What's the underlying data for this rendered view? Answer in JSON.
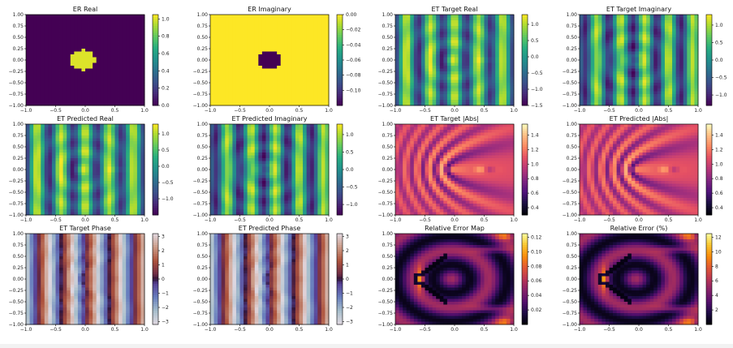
{
  "figure": {
    "colors": {
      "background": "#ffffff",
      "axis": "#000000",
      "text": "#111111"
    },
    "layout": "3 rows x 4 columns of heatmap panels, each with a colorbar on the right"
  },
  "chart_data": [
    {
      "type": "heatmap",
      "title": "ER Real",
      "field": "er_real",
      "cmap": "viridis",
      "xlim": [
        -1,
        1
      ],
      "ylim": [
        -1,
        1
      ],
      "xticks": [
        "−1.0",
        "−0.5",
        "0.0",
        "0.5",
        "1.0"
      ],
      "yticks": [
        "1.00",
        "0.75",
        "0.50",
        "0.25",
        "0.00",
        "−0.25",
        "−0.50",
        "−0.75",
        "−1.00"
      ],
      "clim": [
        0,
        1.05
      ],
      "cbar_ticks": [
        {
          "v": 1.0,
          "label": "1.0"
        },
        {
          "v": 0.8,
          "label": "0.8"
        },
        {
          "v": 0.6,
          "label": "0.6"
        },
        {
          "v": 0.4,
          "label": "0.4"
        },
        {
          "v": 0.2,
          "label": "0.2"
        },
        {
          "v": 0.0,
          "label": "0.0"
        }
      ],
      "description_values": {
        "disk_center": [
          -0.05,
          0.0
        ],
        "disk_radius": 0.22,
        "inside": 1.0,
        "outside": 0.0
      }
    },
    {
      "type": "heatmap",
      "title": "ER Imaginary",
      "field": "er_imag",
      "cmap": "viridis",
      "xlim": [
        -1,
        1
      ],
      "ylim": [
        -1,
        1
      ],
      "xticks": [
        "−1.0",
        "−0.5",
        "0.0",
        "0.5",
        "1.0"
      ],
      "yticks": [
        "1.00",
        "0.75",
        "0.50",
        "0.25",
        "0.00",
        "−0.25",
        "−0.50",
        "−0.75",
        "−1.00"
      ],
      "clim": [
        -0.12,
        0.0
      ],
      "cbar_ticks": [
        {
          "v": 0.0,
          "label": "0.00"
        },
        {
          "v": -0.02,
          "label": "−0.02"
        },
        {
          "v": -0.04,
          "label": "−0.04"
        },
        {
          "v": -0.06,
          "label": "−0.06"
        },
        {
          "v": -0.08,
          "label": "−0.08"
        },
        {
          "v": -0.1,
          "label": "−0.10"
        }
      ],
      "description_values": {
        "disk_center": [
          0.0,
          0.0
        ],
        "disk_radius": 0.22,
        "inside": -0.12,
        "outside": 0.0
      }
    },
    {
      "type": "heatmap",
      "title": "ET Target Real",
      "field": "et_real",
      "cmap": "viridis",
      "xlim": [
        -1,
        1
      ],
      "ylim": [
        -1,
        1
      ],
      "xticks": [
        "−1.0",
        "−0.5",
        "0.0",
        "0.5",
        "1.0"
      ],
      "yticks": [
        "1.00",
        "0.75",
        "0.50",
        "0.25",
        "0.00",
        "−0.25",
        "−0.50",
        "−0.75",
        "−1.00"
      ],
      "clim": [
        -1.5,
        1.3
      ],
      "cbar_ticks": [
        {
          "v": 1.0,
          "label": "1.0"
        },
        {
          "v": 0.5,
          "label": "0.5"
        },
        {
          "v": 0.0,
          "label": "0.0"
        },
        {
          "v": -0.5,
          "label": "−0.5"
        },
        {
          "v": -1.0,
          "label": "−1.0"
        },
        {
          "v": -1.5,
          "label": "−1.5"
        }
      ]
    },
    {
      "type": "heatmap",
      "title": "ET Target Imaginary",
      "field": "et_imag",
      "cmap": "viridis",
      "xlim": [
        -1,
        1
      ],
      "ylim": [
        -1,
        1
      ],
      "xticks": [
        "−1.0",
        "−0.5",
        "0.0",
        "0.5",
        "1.0"
      ],
      "yticks": [
        "1.00",
        "0.75",
        "0.50",
        "0.25",
        "0.00",
        "−0.25",
        "−0.50",
        "−0.75",
        "−1.00"
      ],
      "clim": [
        -1.3,
        1.3
      ],
      "cbar_ticks": [
        {
          "v": 1.0,
          "label": "1.0"
        },
        {
          "v": 0.5,
          "label": "0.5"
        },
        {
          "v": 0.0,
          "label": "0.0"
        },
        {
          "v": -0.5,
          "label": "−0.5"
        },
        {
          "v": -1.0,
          "label": "−1.0"
        }
      ]
    },
    {
      "type": "heatmap",
      "title": "ET Predicted Real",
      "field": "et_real",
      "cmap": "viridis",
      "xlim": [
        -1,
        1
      ],
      "ylim": [
        -1,
        1
      ],
      "xticks": [
        "−1.0",
        "−0.5",
        "0.0",
        "0.5",
        "1.0"
      ],
      "yticks": [
        "1.00",
        "0.75",
        "0.50",
        "0.25",
        "0.00",
        "−0.25",
        "−0.50",
        "−0.75",
        "−1.00"
      ],
      "clim": [
        -1.5,
        1.3
      ],
      "cbar_ticks": [
        {
          "v": 1.0,
          "label": "1.0"
        },
        {
          "v": 0.5,
          "label": "0.5"
        },
        {
          "v": 0.0,
          "label": "0.0"
        },
        {
          "v": -0.5,
          "label": "−0.5"
        },
        {
          "v": -1.0,
          "label": "−1.0"
        }
      ]
    },
    {
      "type": "heatmap",
      "title": "ET Predicted Imaginary",
      "field": "et_imag",
      "cmap": "viridis",
      "xlim": [
        -1,
        1
      ],
      "ylim": [
        -1,
        1
      ],
      "xticks": [
        "−1.0",
        "−0.5",
        "0.0",
        "0.5",
        "1.0"
      ],
      "yticks": [
        "1.00",
        "0.75",
        "0.50",
        "0.25",
        "0.00",
        "−0.25",
        "−0.50",
        "−0.75",
        "−1.00"
      ],
      "clim": [
        -1.3,
        1.3
      ],
      "cbar_ticks": [
        {
          "v": 1.0,
          "label": "1.0"
        },
        {
          "v": 0.5,
          "label": "0.5"
        },
        {
          "v": 0.0,
          "label": "0.0"
        },
        {
          "v": -0.5,
          "label": "−0.5"
        },
        {
          "v": -1.0,
          "label": "−1.0"
        }
      ]
    },
    {
      "type": "heatmap",
      "title": "ET Target |Abs|",
      "field": "et_abs",
      "cmap": "magma",
      "xlim": [
        -1,
        1
      ],
      "ylim": [
        -1,
        1
      ],
      "xticks": [
        "−1.0",
        "−0.5",
        "0.0",
        "0.5",
        "1.0"
      ],
      "yticks": [
        "1.00",
        "0.75",
        "0.50",
        "0.25",
        "0.00",
        "−0.25",
        "−0.50",
        "−0.75",
        "−1.00"
      ],
      "clim": [
        0.3,
        1.55
      ],
      "cbar_ticks": [
        {
          "v": 1.4,
          "label": "1.4"
        },
        {
          "v": 1.2,
          "label": "1.2"
        },
        {
          "v": 1.0,
          "label": "1.0"
        },
        {
          "v": 0.8,
          "label": "0.8"
        },
        {
          "v": 0.6,
          "label": "0.6"
        },
        {
          "v": 0.4,
          "label": "0.4"
        }
      ]
    },
    {
      "type": "heatmap",
      "title": "ET Predicted |Abs|",
      "field": "et_abs",
      "cmap": "magma",
      "xlim": [
        -1,
        1
      ],
      "ylim": [
        -1,
        1
      ],
      "xticks": [
        "−1.0",
        "−0.5",
        "0.0",
        "0.5",
        "1.0"
      ],
      "yticks": [
        "1.00",
        "0.75",
        "0.50",
        "0.25",
        "0.00",
        "−0.25",
        "−0.50",
        "−0.75",
        "−1.00"
      ],
      "clim": [
        0.3,
        1.55
      ],
      "cbar_ticks": [
        {
          "v": 1.4,
          "label": "1.4"
        },
        {
          "v": 1.2,
          "label": "1.2"
        },
        {
          "v": 1.0,
          "label": "1.0"
        },
        {
          "v": 0.8,
          "label": "0.8"
        },
        {
          "v": 0.6,
          "label": "0.6"
        },
        {
          "v": 0.4,
          "label": "0.4"
        }
      ]
    },
    {
      "type": "heatmap",
      "title": "ET Target Phase",
      "field": "et_phase",
      "cmap": "twilight",
      "xlim": [
        -1,
        1
      ],
      "ylim": [
        -1,
        1
      ],
      "xticks": [
        "−1.0",
        "−0.5",
        "0.0",
        "0.5",
        "1.0"
      ],
      "yticks": [
        "1.00",
        "0.75",
        "0.50",
        "0.25",
        "0.00",
        "−0.25",
        "−0.50",
        "−0.75",
        "−1.00"
      ],
      "clim": [
        -3.2,
        3.2
      ],
      "cbar_ticks": [
        {
          "v": 3,
          "label": "3"
        },
        {
          "v": 2,
          "label": "2"
        },
        {
          "v": 1,
          "label": "1"
        },
        {
          "v": 0,
          "label": "0"
        },
        {
          "v": -1,
          "label": "−1"
        },
        {
          "v": -2,
          "label": "−2"
        },
        {
          "v": -3,
          "label": "−3"
        }
      ]
    },
    {
      "type": "heatmap",
      "title": "ET Predicted Phase",
      "field": "et_phase",
      "cmap": "twilight",
      "xlim": [
        -1,
        1
      ],
      "ylim": [
        -1,
        1
      ],
      "xticks": [
        "−1.0",
        "−0.5",
        "0.0",
        "0.5",
        "1.0"
      ],
      "yticks": [
        "1.00",
        "0.75",
        "0.50",
        "0.25",
        "0.00",
        "−0.25",
        "−0.50",
        "−0.75",
        "−1.00"
      ],
      "clim": [
        -3.2,
        3.2
      ],
      "cbar_ticks": [
        {
          "v": 3,
          "label": "3"
        },
        {
          "v": 2,
          "label": "2"
        },
        {
          "v": 1,
          "label": "1"
        },
        {
          "v": 0,
          "label": "0"
        },
        {
          "v": -1,
          "label": "−1"
        },
        {
          "v": -2,
          "label": "−2"
        },
        {
          "v": -3,
          "label": "−3"
        }
      ]
    },
    {
      "type": "heatmap",
      "title": "Relative Error Map",
      "field": "err",
      "cmap": "inferno",
      "xlim": [
        -1,
        1
      ],
      "ylim": [
        -1,
        1
      ],
      "xticks": [
        "−1.0",
        "−0.5",
        "0.0",
        "0.5",
        "1.0"
      ],
      "yticks": [
        "1.00",
        "0.75",
        "0.50",
        "0.25",
        "0.00",
        "−0.25",
        "−0.50",
        "−0.75",
        "−1.00"
      ],
      "clim": [
        0,
        0.125
      ],
      "cbar_ticks": [
        {
          "v": 0.12,
          "label": "0.12"
        },
        {
          "v": 0.1,
          "label": "0.10"
        },
        {
          "v": 0.08,
          "label": "0.08"
        },
        {
          "v": 0.06,
          "label": "0.06"
        },
        {
          "v": 0.04,
          "label": "0.04"
        },
        {
          "v": 0.02,
          "label": "0.02"
        }
      ]
    },
    {
      "type": "heatmap",
      "title": "Relative Error (%)",
      "field": "err",
      "cmap": "inferno",
      "xlim": [
        -1,
        1
      ],
      "ylim": [
        -1,
        1
      ],
      "xticks": [
        "−1.0",
        "−0.5",
        "0.0",
        "0.5",
        "1.0"
      ],
      "yticks": [
        "1.00",
        "0.75",
        "0.50",
        "0.25",
        "0.00",
        "−0.25",
        "−0.50",
        "−0.75",
        "−1.00"
      ],
      "clim": [
        0,
        12.5
      ],
      "value_scale": 100,
      "cbar_ticks": [
        {
          "v": 12,
          "label": "12"
        },
        {
          "v": 10,
          "label": "10"
        },
        {
          "v": 8,
          "label": "8"
        },
        {
          "v": 6,
          "label": "6"
        },
        {
          "v": 4,
          "label": "4"
        },
        {
          "v": 2,
          "label": "2"
        }
      ]
    }
  ]
}
